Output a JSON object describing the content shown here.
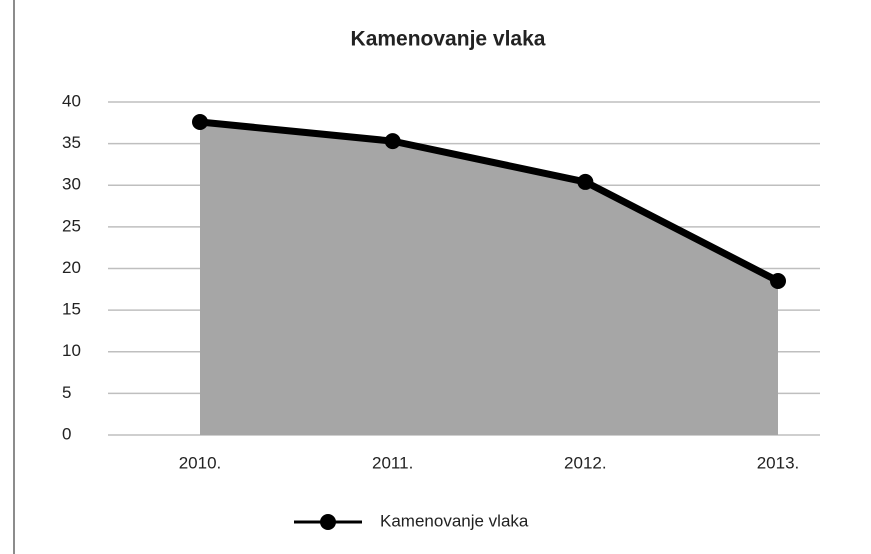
{
  "chart_data": {
    "type": "area",
    "title": "Kamenovanje vlaka",
    "categories": [
      "2010.",
      "2011.",
      "2012.",
      "2013."
    ],
    "series": [
      {
        "name": "Kamenovanje vlaka",
        "color": "#000000",
        "values": [
          37.6,
          35.3,
          30.4,
          18.5
        ]
      }
    ],
    "fill_color": "#a6a6a6",
    "ylim": [
      0,
      40
    ],
    "yticks": [
      0,
      5,
      10,
      15,
      20,
      25,
      30,
      35,
      40
    ],
    "grid": true,
    "legend": "bottom"
  }
}
